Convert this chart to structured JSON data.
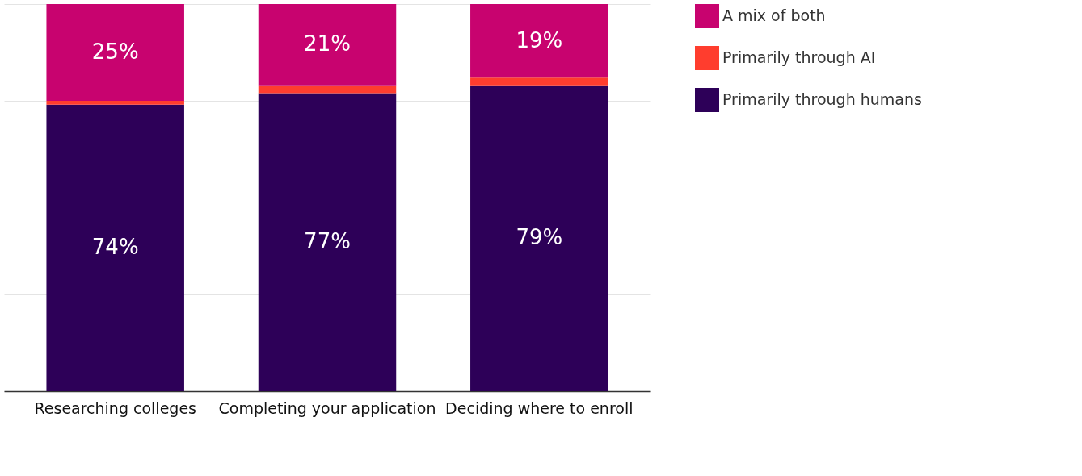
{
  "chart_data": {
    "type": "bar",
    "stacked": true,
    "categories": [
      "Researching colleges",
      "Completing your application",
      "Deciding where to enroll"
    ],
    "series": [
      {
        "name": "Primarily through humans",
        "color": "#2d0058",
        "values": [
          74,
          77,
          79
        ],
        "value_labels": [
          "74%",
          "77%",
          "79%"
        ]
      },
      {
        "name": "Primarily through AI",
        "color": "#ff3d2e",
        "values": [
          1,
          2,
          2
        ],
        "value_labels": [
          null,
          null,
          null
        ]
      },
      {
        "name": "A mix of both",
        "color": "#c8036f",
        "values": [
          25,
          21,
          19
        ],
        "value_labels": [
          "25%",
          "21%",
          "19%"
        ]
      }
    ],
    "ylim": [
      0,
      100
    ],
    "yticks": [
      {
        "value": 0,
        "label": null
      },
      {
        "value": 25,
        "label": null
      },
      {
        "value": 50,
        "label": null
      },
      {
        "value": 75,
        "label": null
      },
      {
        "value": 100,
        "label": null
      }
    ],
    "grid": "y",
    "tick_labels": "x",
    "legend": "right"
  }
}
